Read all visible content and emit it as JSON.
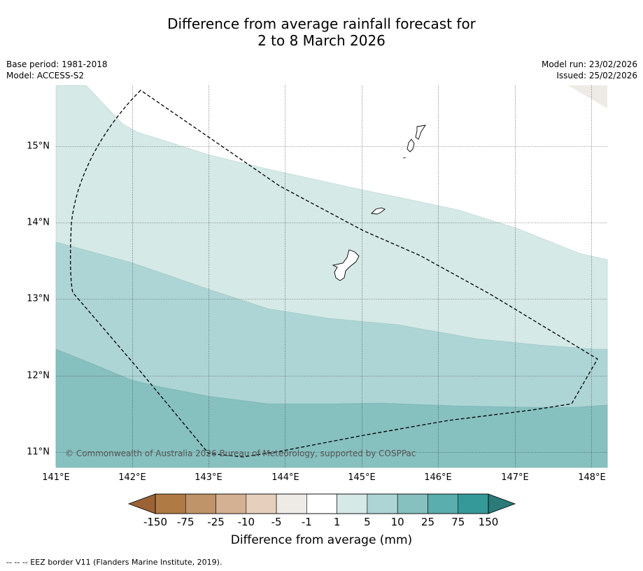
{
  "title_line1": "Difference from average rainfall forecast for",
  "title_line2": "2 to 8 March 2026",
  "base_period": "Base period: 1981-2018",
  "model": "Model: ACCESS-S2",
  "model_run": "Model run: 23/02/2026",
  "issued": "Issued: 25/02/2026",
  "copyright": "© Commonwealth of Australia 2026 Bureau of Meteorology, supported by COSPPac",
  "footnote": "--  --  -- EEZ border V11 (Flanders Marine Institute, 2019).",
  "axes": {
    "x_ticks": [
      "141°E",
      "142°E",
      "143°E",
      "144°E",
      "145°E",
      "146°E",
      "147°E",
      "148°E"
    ],
    "y_ticks": [
      "15°N",
      "14°N",
      "13°N",
      "12°N",
      "11°N"
    ]
  },
  "colorbar": {
    "title": "Difference from average (mm)",
    "labels": [
      "-150",
      "-75",
      "-25",
      "-10",
      "-5",
      "-1",
      "1",
      "5",
      "10",
      "25",
      "75",
      "150"
    ],
    "colors": [
      "#b07a44",
      "#c09469",
      "#d4b192",
      "#e6cfbd",
      "#eeebe6",
      "#ffffff",
      "#d5e9e7",
      "#aed5d5",
      "#86c0bf",
      "#5aaeae",
      "#35999a"
    ],
    "under_color": "#9b6235",
    "over_color": "#2a7b79"
  },
  "colors": {
    "band_1_5": "#d5e9e7",
    "band_5_10": "#aed5d5",
    "band_10_25": "#86c0bf",
    "band_neg5_neg1": "#eeebe6"
  }
}
